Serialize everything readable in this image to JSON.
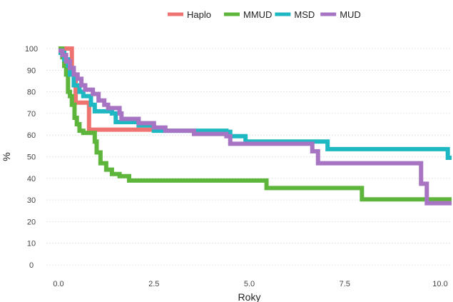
{
  "chart_data": {
    "type": "line",
    "step": true,
    "xlabel": "Roky",
    "ylabel": "%",
    "xlim": [
      -0.5,
      10.3
    ],
    "ylim": [
      0,
      100
    ],
    "x_ticks": [
      0.0,
      2.5,
      5.0,
      7.5,
      10.0
    ],
    "x_tick_labels": [
      "0.0",
      "2.5",
      "5.0",
      "7.5",
      "10.0"
    ],
    "y_ticks": [
      0,
      10,
      20,
      30,
      40,
      50,
      60,
      70,
      80,
      90,
      100
    ],
    "y_tick_labels": [
      "0",
      "10",
      "20",
      "30",
      "40",
      "50",
      "60",
      "70",
      "80",
      "90",
      "100"
    ],
    "grid": true,
    "legend_position": "top-center",
    "series": [
      {
        "name": "Haplo",
        "color": "#EF7370",
        "points": [
          [
            0.0,
            100
          ],
          [
            0.35,
            100
          ],
          [
            0.35,
            88
          ],
          [
            0.45,
            88
          ],
          [
            0.45,
            75
          ],
          [
            0.8,
            75
          ],
          [
            0.8,
            62.5
          ],
          [
            2.8,
            62.5
          ],
          [
            2.8,
            62.5
          ]
        ]
      },
      {
        "name": "MMUD",
        "color": "#5DB53B",
        "points": [
          [
            0.0,
            100
          ],
          [
            0.1,
            96
          ],
          [
            0.15,
            92
          ],
          [
            0.2,
            88
          ],
          [
            0.25,
            80
          ],
          [
            0.3,
            78
          ],
          [
            0.35,
            74
          ],
          [
            0.42,
            68
          ],
          [
            0.48,
            65
          ],
          [
            0.55,
            62
          ],
          [
            0.65,
            61
          ],
          [
            0.9,
            61
          ],
          [
            0.95,
            57
          ],
          [
            1.0,
            52
          ],
          [
            1.1,
            47
          ],
          [
            1.25,
            44
          ],
          [
            1.4,
            42
          ],
          [
            1.6,
            41
          ],
          [
            1.85,
            39
          ],
          [
            5.45,
            39
          ],
          [
            5.45,
            35.5
          ],
          [
            7.95,
            35.5
          ],
          [
            7.95,
            30.3
          ],
          [
            10.3,
            30.3
          ]
        ]
      },
      {
        "name": "MSD",
        "color": "#1EB8C2",
        "points": [
          [
            0.0,
            98
          ],
          [
            0.15,
            95
          ],
          [
            0.25,
            92
          ],
          [
            0.3,
            88
          ],
          [
            0.4,
            83
          ],
          [
            0.55,
            80
          ],
          [
            0.65,
            78
          ],
          [
            0.85,
            74
          ],
          [
            0.95,
            71
          ],
          [
            1.4,
            70
          ],
          [
            1.5,
            66
          ],
          [
            2.1,
            64.5
          ],
          [
            2.5,
            62
          ],
          [
            4.4,
            61.5
          ],
          [
            4.5,
            59.5
          ],
          [
            4.9,
            57
          ],
          [
            7.05,
            57
          ],
          [
            7.05,
            53.5
          ],
          [
            10.2,
            53.5
          ],
          [
            10.2,
            49.5
          ],
          [
            10.3,
            49.5
          ]
        ]
      },
      {
        "name": "MUD",
        "color": "#A674C2",
        "points": [
          [
            0.0,
            99
          ],
          [
            0.1,
            97
          ],
          [
            0.2,
            94
          ],
          [
            0.3,
            91
          ],
          [
            0.4,
            88
          ],
          [
            0.5,
            86
          ],
          [
            0.6,
            83
          ],
          [
            0.7,
            81
          ],
          [
            0.9,
            79
          ],
          [
            1.05,
            76
          ],
          [
            1.2,
            74
          ],
          [
            1.3,
            72.5
          ],
          [
            1.6,
            70
          ],
          [
            1.65,
            67.5
          ],
          [
            2.1,
            65.5
          ],
          [
            2.5,
            63.5
          ],
          [
            2.8,
            62
          ],
          [
            3.55,
            60.5
          ],
          [
            4.4,
            59.5
          ],
          [
            4.5,
            56
          ],
          [
            6.65,
            56
          ],
          [
            6.65,
            52.5
          ],
          [
            6.8,
            52.5
          ],
          [
            6.8,
            47
          ],
          [
            9.5,
            47
          ],
          [
            9.5,
            37.5
          ],
          [
            9.65,
            37.5
          ],
          [
            9.65,
            28.5
          ],
          [
            10.3,
            28.5
          ]
        ]
      }
    ]
  }
}
